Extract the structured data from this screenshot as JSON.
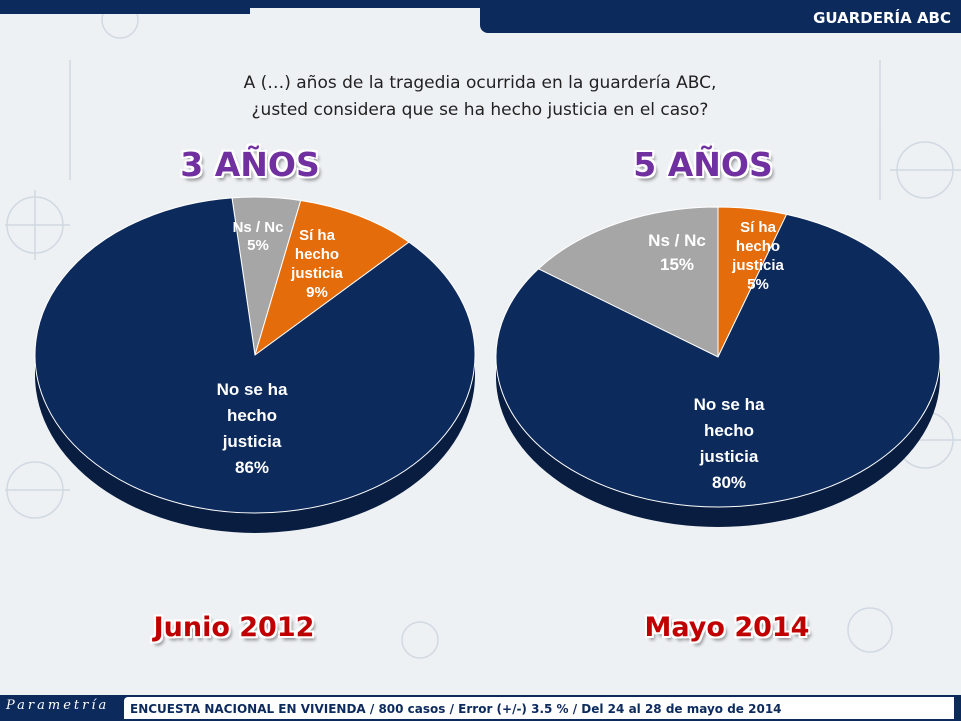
{
  "header": {
    "tag": "GUARDERÍA ABC"
  },
  "question": {
    "line1": "A (…) años de la tragedia ocurrida en la guardería ABC,",
    "line2": "¿usted considera que se ha hecho justicia en el caso?"
  },
  "chart_data": [
    {
      "type": "pie",
      "title": "3 AÑOS",
      "date": "Junio 2012",
      "slices": [
        {
          "label": [
            "Ns / Nc"
          ],
          "value_label": "5%",
          "value": 5,
          "color": "#a6a6a6"
        },
        {
          "label": [
            "Sí ha",
            "hecho",
            "justicia"
          ],
          "value_label": "9%",
          "value": 9,
          "color": "#e46c0a"
        },
        {
          "label": [
            "No se ha",
            "hecho",
            "justicia"
          ],
          "value_label": "86%",
          "value": 86,
          "color": "#0d2a5c"
        }
      ]
    },
    {
      "type": "pie",
      "title": "5 AÑOS",
      "date": "Mayo 2014",
      "slices": [
        {
          "label": [
            "Ns / Nc"
          ],
          "value_label": "15%",
          "value": 15,
          "color": "#a6a6a6"
        },
        {
          "label": [
            "Sí ha",
            "hecho",
            "justicia"
          ],
          "value_label": "5%",
          "value": 5,
          "color": "#e46c0a"
        },
        {
          "label": [
            "No se ha",
            "hecho",
            "justicia"
          ],
          "value_label": "80%",
          "value": 80,
          "color": "#0d2a5c"
        }
      ]
    }
  ],
  "footer": {
    "logo": "Parametría",
    "text": "ENCUESTA NACIONAL EN VIVIENDA / 800 casos / Error (+/-) 3.5 % / Del 24 al 28 de mayo de 2014"
  }
}
